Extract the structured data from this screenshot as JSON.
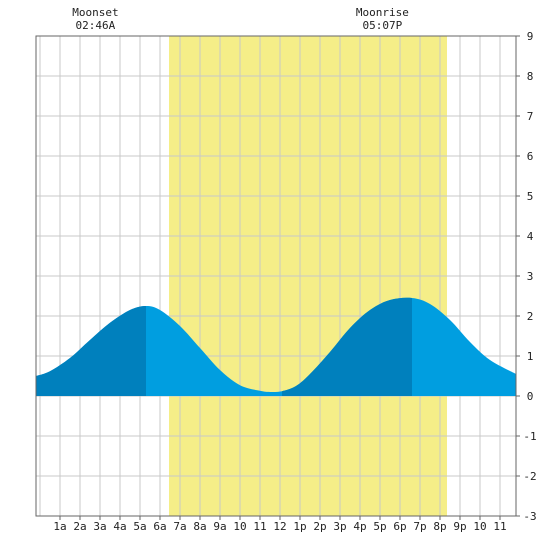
{
  "chart_data": {
    "type": "area",
    "title": "",
    "xlabel": "",
    "ylabel": "",
    "x_range_hours": [
      -0.2,
      23.8
    ],
    "ylim": [
      -3,
      9
    ],
    "y_ticks": [
      -3,
      -2,
      -1,
      0,
      1,
      2,
      3,
      4,
      5,
      6,
      7,
      8,
      9
    ],
    "x_tick_labels": [
      "1a",
      "2a",
      "3a",
      "4a",
      "5a",
      "6a",
      "7a",
      "8a",
      "9a",
      "10",
      "11",
      "12",
      "1p",
      "2p",
      "3p",
      "4p",
      "5p",
      "6p",
      "7p",
      "8p",
      "9p",
      "10",
      "11"
    ],
    "daylight_hours": [
      6.45,
      20.35
    ],
    "grid": true,
    "series": [
      {
        "x": [
          -0.2,
          0.5,
          1.5,
          2.5,
          3.5,
          4.5,
          5.3,
          6.0,
          7.0,
          8.0,
          9.0,
          10.0,
          11.0,
          11.5,
          12.1,
          12.8,
          13.5,
          14.5,
          15.5,
          16.5,
          17.5,
          18.6,
          19.5,
          20.5,
          21.5,
          22.5,
          23.8
        ],
        "y": [
          0.5,
          0.62,
          0.95,
          1.4,
          1.83,
          2.15,
          2.25,
          2.15,
          1.75,
          1.2,
          0.65,
          0.27,
          0.13,
          0.1,
          0.12,
          0.25,
          0.55,
          1.1,
          1.7,
          2.15,
          2.4,
          2.45,
          2.3,
          1.9,
          1.35,
          0.9,
          0.55
        ]
      }
    ],
    "dark_segments": [
      [
        -0.2,
        5.3
      ],
      [
        12.1,
        18.6
      ]
    ],
    "colors": {
      "daylight": "#f5ee88",
      "tide_light": "#009ee0",
      "tide_dark": "#0080bd",
      "grid": "#c8c8c8",
      "axis": "#666666"
    },
    "annotations": [
      {
        "label": "Moonset",
        "time": "02:46A",
        "hour": 2.77
      },
      {
        "label": "Moonrise",
        "time": "05:07P",
        "hour": 17.12
      }
    ]
  }
}
